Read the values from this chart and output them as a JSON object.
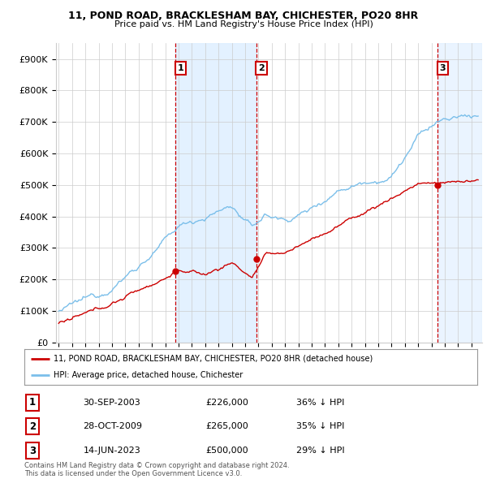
{
  "title1": "11, POND ROAD, BRACKLESHAM BAY, CHICHESTER, PO20 8HR",
  "title2": "Price paid vs. HM Land Registry's House Price Index (HPI)",
  "ylabel_ticks": [
    "£0",
    "£100K",
    "£200K",
    "£300K",
    "£400K",
    "£500K",
    "£600K",
    "£700K",
    "£800K",
    "£900K"
  ],
  "ytick_vals": [
    0,
    100000,
    200000,
    300000,
    400000,
    500000,
    600000,
    700000,
    800000,
    900000
  ],
  "ylim": [
    0,
    950000
  ],
  "xlim_start": 1994.8,
  "xlim_end": 2026.8,
  "hpi_color": "#7bbfea",
  "price_color": "#cc0000",
  "vline_color": "#cc0000",
  "shade_color": "#ddeeff",
  "grid_color": "#cccccc",
  "legend_label_price": "11, POND ROAD, BRACKLESHAM BAY, CHICHESTER, PO20 8HR (detached house)",
  "legend_label_hpi": "HPI: Average price, detached house, Chichester",
  "transactions": [
    {
      "num": 1,
      "date_str": "30-SEP-2003",
      "date_x": 2003.75,
      "price": 226000,
      "pct": "36%",
      "dir": "↓"
    },
    {
      "num": 2,
      "date_str": "28-OCT-2009",
      "date_x": 2009.83,
      "price": 265000,
      "pct": "35%",
      "dir": "↓"
    },
    {
      "num": 3,
      "date_str": "14-JUN-2023",
      "date_x": 2023.45,
      "price": 500000,
      "pct": "29%",
      "dir": "↓"
    }
  ],
  "footnote": "Contains HM Land Registry data © Crown copyright and database right 2024.\nThis data is licensed under the Open Government Licence v3.0.",
  "background_color": "#ffffff"
}
